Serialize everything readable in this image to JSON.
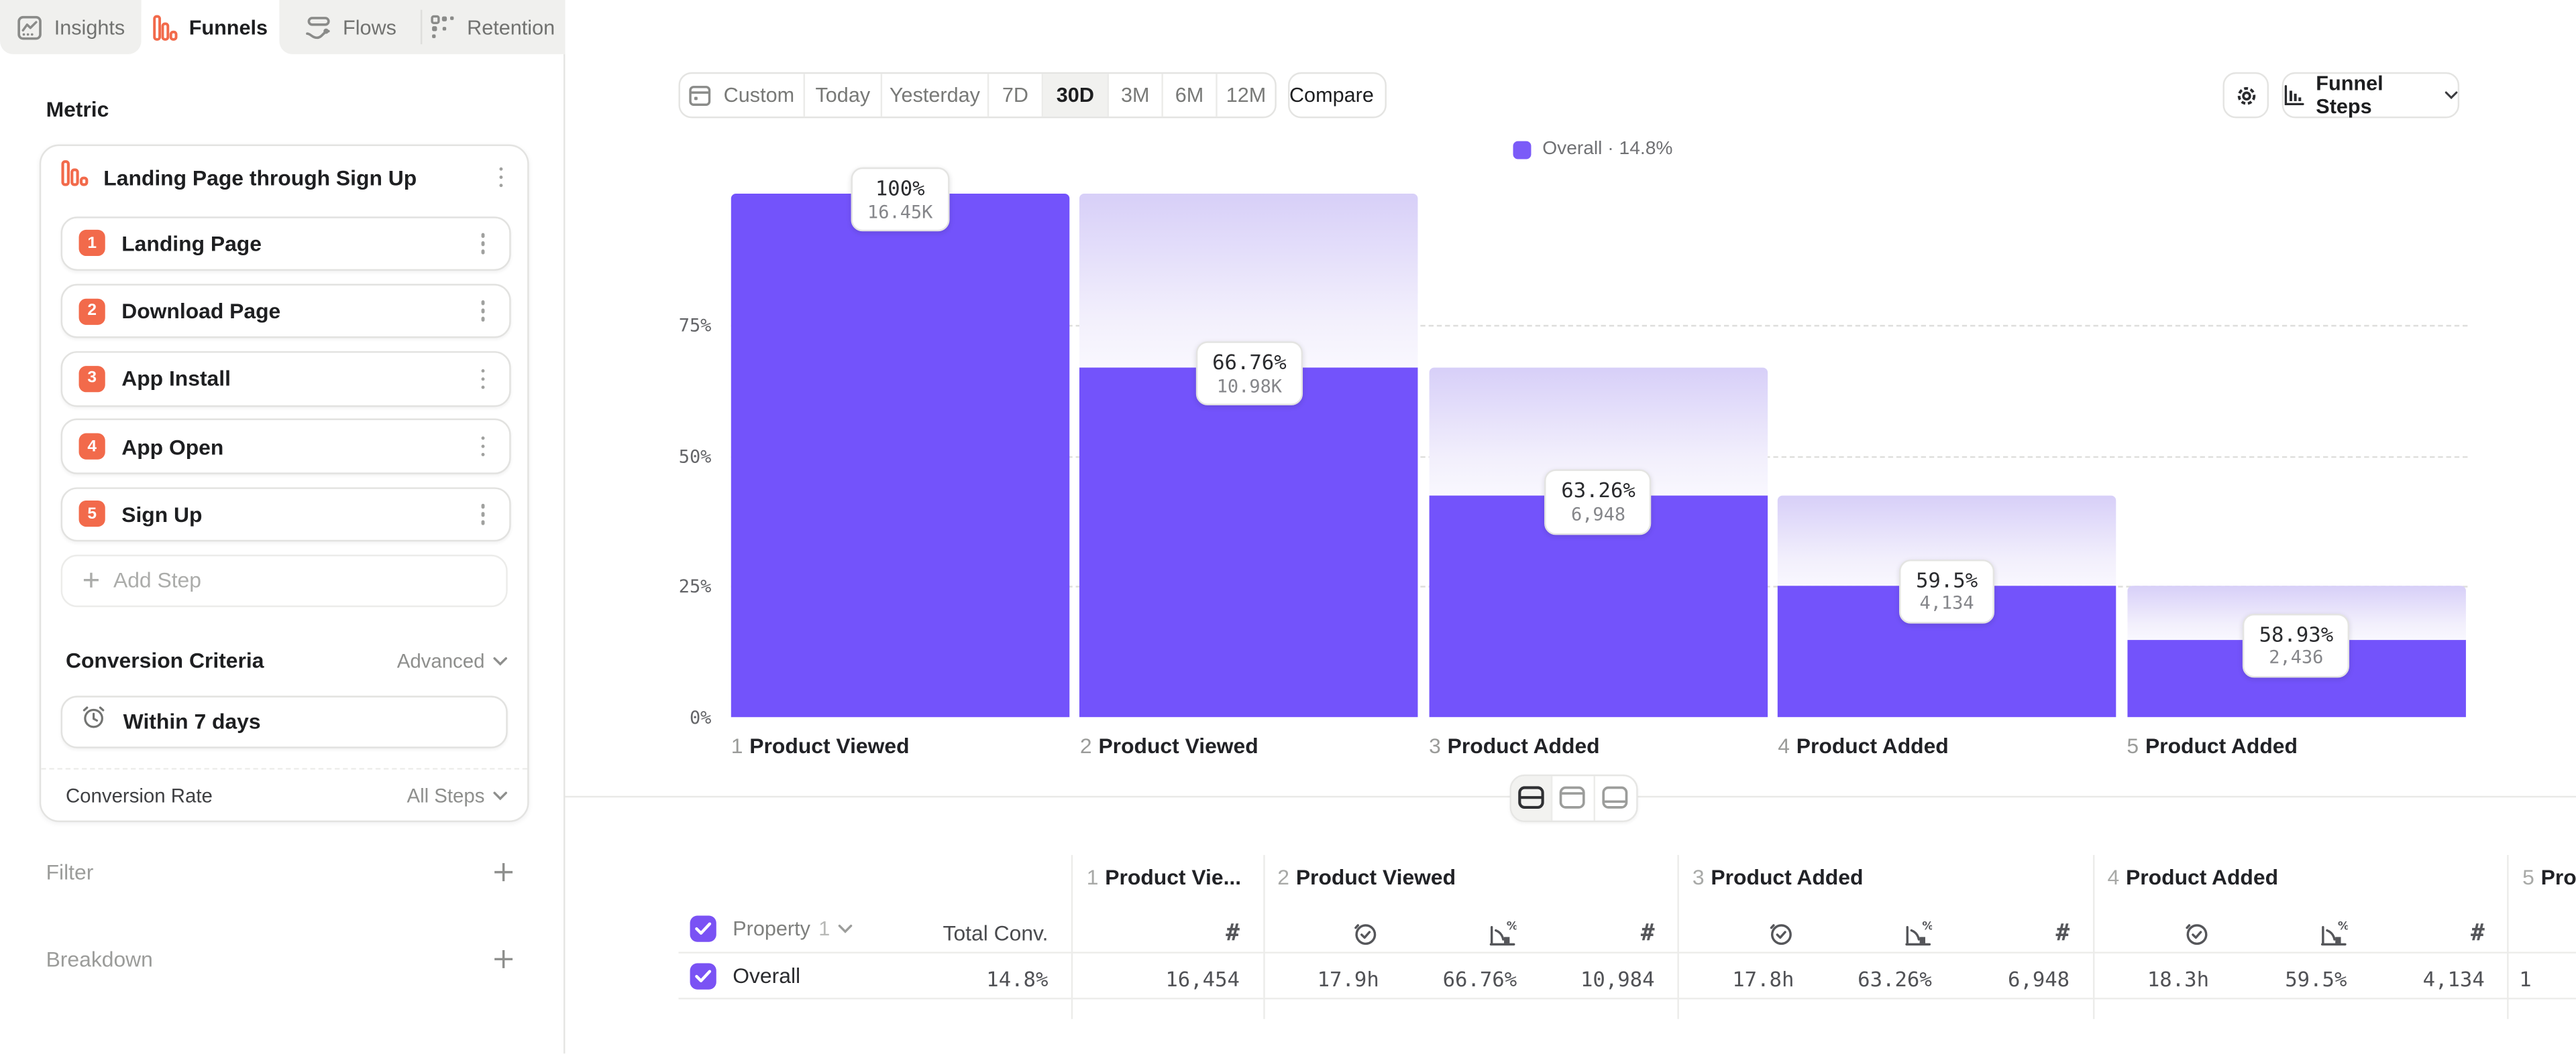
{
  "tabs": [
    {
      "label": "Insights",
      "active": false
    },
    {
      "label": "Funnels",
      "active": true
    },
    {
      "label": "Flows",
      "active": false
    },
    {
      "label": "Retention",
      "active": false
    }
  ],
  "sidebar": {
    "metric_label": "Metric",
    "metric_title": "Landing Page through Sign Up",
    "steps": [
      {
        "num": "1",
        "label": "Landing Page"
      },
      {
        "num": "2",
        "label": "Download Page"
      },
      {
        "num": "3",
        "label": "App Install"
      },
      {
        "num": "4",
        "label": "App Open"
      },
      {
        "num": "5",
        "label": "Sign Up"
      }
    ],
    "add_step_label": "Add Step",
    "conversion_criteria_label": "Conversion Criteria",
    "advanced_label": "Advanced",
    "window_label": "Within 7 days",
    "conversion_rate_label": "Conversion Rate",
    "all_steps_label": "All Steps",
    "filter_label": "Filter",
    "breakdown_label": "Breakdown"
  },
  "toolbar": {
    "ranges": [
      "Custom",
      "Today",
      "Yesterday",
      "7D",
      "30D",
      "3M",
      "6M",
      "12M"
    ],
    "active_range": "30D",
    "compare_label": "Compare",
    "funnel_steps_label": "Funnel Steps"
  },
  "legend": {
    "name": "Overall",
    "separator": "·",
    "value": "14.8%"
  },
  "chart_data": {
    "type": "bar",
    "subtype": "funnel-steps",
    "legend": [
      {
        "name": "Overall",
        "conversion": "14.8%",
        "color": "#7B5BF8"
      }
    ],
    "ylim": [
      0,
      100
    ],
    "grid": "dashed horizontal at 25/50/75",
    "y_axis": [
      {
        "label": "75%",
        "pct": 75
      },
      {
        "label": "50%",
        "pct": 50
      },
      {
        "label": "25%",
        "pct": 25
      },
      {
        "label": "0%",
        "pct": 0
      }
    ],
    "steps": [
      {
        "index": "1",
        "label": "Product Viewed",
        "step_conversion": "100%",
        "count_label": "16.45K",
        "count": 16454,
        "cumulative_pct": 100
      },
      {
        "index": "2",
        "label": "Product Viewed",
        "step_conversion": "66.76%",
        "count_label": "10.98K",
        "count": 10984,
        "cumulative_pct": 66.76
      },
      {
        "index": "3",
        "label": "Product Added",
        "step_conversion": "63.26%",
        "count_label": "6,948",
        "count": 6948,
        "cumulative_pct": 42.23
      },
      {
        "index": "4",
        "label": "Product Added",
        "step_conversion": "59.5%",
        "count_label": "4,134",
        "count": 4134,
        "cumulative_pct": 25.12
      },
      {
        "index": "5",
        "label": "Product Added",
        "step_conversion": "58.93%",
        "count_label": "2,436",
        "count": 2436,
        "cumulative_pct": 14.8
      }
    ]
  },
  "table": {
    "property_label": "Property",
    "property_index": "1",
    "total_conv_label": "Total Conv.",
    "row_label": "Overall",
    "row_total": "14.8%",
    "metric_icons": {
      "time": "time-to-convert-icon",
      "rate": "conversion-rate-icon",
      "hash": "count-icon"
    },
    "groups": [
      {
        "num": "1",
        "title": "Product Vie...",
        "cells": [
          {
            "icon": "hash",
            "value": "16,454"
          }
        ]
      },
      {
        "num": "2",
        "title": "Product Viewed",
        "cells": [
          {
            "icon": "time",
            "value": "17.9h"
          },
          {
            "icon": "rate",
            "value": "66.76%"
          },
          {
            "icon": "hash",
            "value": "10,984"
          }
        ]
      },
      {
        "num": "3",
        "title": "Product Added",
        "cells": [
          {
            "icon": "time",
            "value": "17.8h"
          },
          {
            "icon": "rate",
            "value": "63.26%"
          },
          {
            "icon": "hash",
            "value": "6,948"
          }
        ]
      },
      {
        "num": "4",
        "title": "Product Added",
        "cells": [
          {
            "icon": "time",
            "value": "18.3h"
          },
          {
            "icon": "rate",
            "value": "59.5%"
          },
          {
            "icon": "hash",
            "value": "4,134"
          }
        ]
      },
      {
        "num": "5",
        "title": "Product Added",
        "partial": true,
        "cells": [
          {
            "icon": "time",
            "value": "1"
          }
        ]
      }
    ]
  },
  "colors": {
    "accent_purple": "#7353FB",
    "legend_purple": "#7B5BF8",
    "gradient_top": "#D7CFF8",
    "brand_orange": "#F26A4B",
    "checkbox_purple": "#7A52F4",
    "tabbar_gray": "#F0F0EE"
  }
}
